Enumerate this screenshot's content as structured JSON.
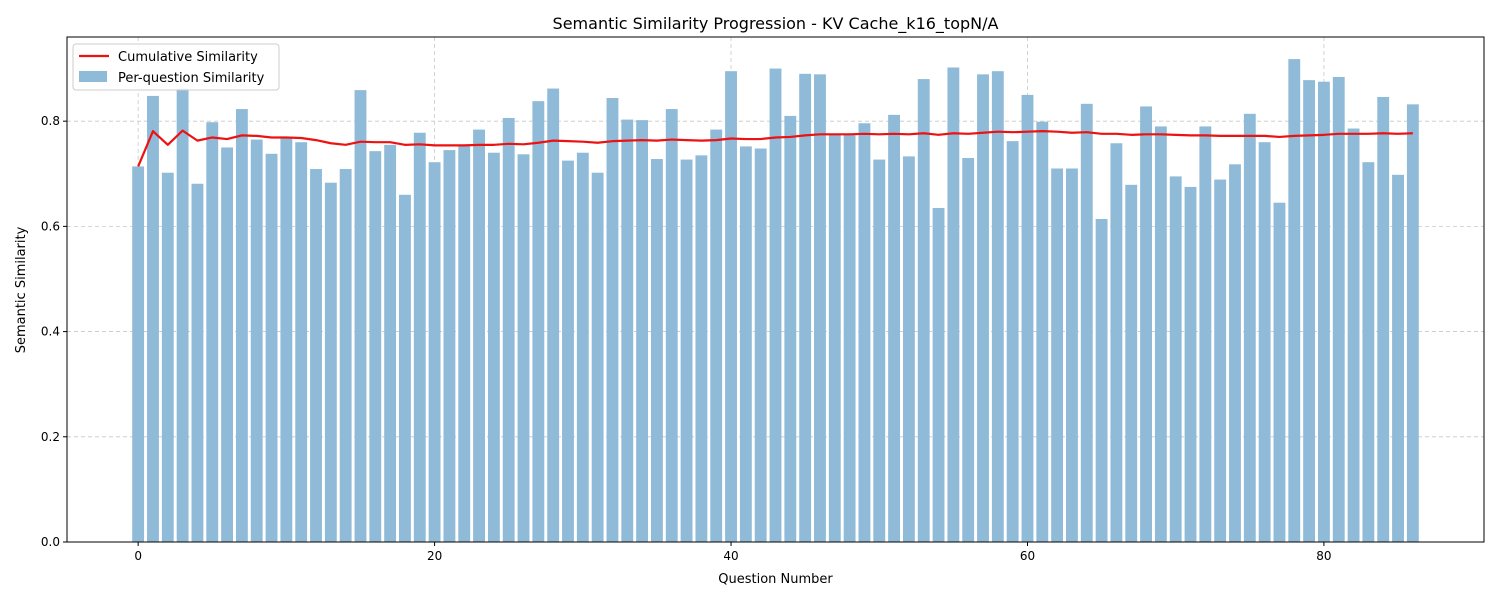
{
  "chart_data": {
    "type": "bar",
    "title": "Semantic Similarity Progression - KV Cache_k16_topN/A",
    "xlabel": "Question Number",
    "ylabel": "Semantic Similarity",
    "xlim": [
      -4.8,
      90.8
    ],
    "ylim": [
      0,
      0.96
    ],
    "x_ticks": [
      0,
      20,
      40,
      60,
      80
    ],
    "y_ticks": [
      0.0,
      0.2,
      0.4,
      0.6,
      0.8
    ],
    "grid": true,
    "legend_position": "top-left",
    "x": [
      0,
      1,
      2,
      3,
      4,
      5,
      6,
      7,
      8,
      9,
      10,
      11,
      12,
      13,
      14,
      15,
      16,
      17,
      18,
      19,
      20,
      21,
      22,
      23,
      24,
      25,
      26,
      27,
      28,
      29,
      30,
      31,
      32,
      33,
      34,
      35,
      36,
      37,
      38,
      39,
      40,
      41,
      42,
      43,
      44,
      45,
      46,
      47,
      48,
      49,
      50,
      51,
      52,
      53,
      54,
      55,
      56,
      57,
      58,
      59,
      60,
      61,
      62,
      63,
      64,
      65,
      66,
      67,
      68,
      69,
      70,
      71,
      72,
      73,
      74,
      75,
      76,
      77,
      78,
      79,
      80,
      81,
      82,
      83,
      84,
      85,
      86
    ],
    "series": [
      {
        "name": "Per-question Similarity",
        "type": "bar",
        "color": "#8fbad8",
        "values": [
          0.714,
          0.848,
          0.702,
          0.862,
          0.681,
          0.798,
          0.75,
          0.823,
          0.765,
          0.738,
          0.768,
          0.76,
          0.709,
          0.683,
          0.709,
          0.859,
          0.743,
          0.755,
          0.66,
          0.778,
          0.722,
          0.745,
          0.755,
          0.784,
          0.74,
          0.806,
          0.737,
          0.838,
          0.862,
          0.725,
          0.74,
          0.702,
          0.844,
          0.803,
          0.802,
          0.728,
          0.823,
          0.727,
          0.735,
          0.784,
          0.895,
          0.752,
          0.748,
          0.9,
          0.81,
          0.89,
          0.889,
          0.776,
          0.776,
          0.796,
          0.727,
          0.812,
          0.733,
          0.88,
          0.635,
          0.902,
          0.73,
          0.889,
          0.895,
          0.762,
          0.85,
          0.799,
          0.71,
          0.71,
          0.833,
          0.614,
          0.758,
          0.679,
          0.828,
          0.79,
          0.695,
          0.675,
          0.79,
          0.689,
          0.718,
          0.814,
          0.76,
          0.645,
          0.918,
          0.878,
          0.875,
          0.884,
          0.786,
          0.722,
          0.846,
          0.698,
          0.832
        ]
      },
      {
        "name": "Cumulative Similarity",
        "type": "line",
        "color": "#ee1111",
        "values": [
          0.714,
          0.781,
          0.755,
          0.782,
          0.763,
          0.769,
          0.766,
          0.773,
          0.772,
          0.769,
          0.769,
          0.768,
          0.764,
          0.758,
          0.755,
          0.761,
          0.76,
          0.76,
          0.755,
          0.756,
          0.754,
          0.754,
          0.754,
          0.755,
          0.755,
          0.757,
          0.756,
          0.759,
          0.763,
          0.762,
          0.761,
          0.759,
          0.762,
          0.763,
          0.764,
          0.763,
          0.765,
          0.764,
          0.763,
          0.764,
          0.767,
          0.766,
          0.766,
          0.769,
          0.77,
          0.773,
          0.775,
          0.775,
          0.775,
          0.776,
          0.775,
          0.776,
          0.775,
          0.777,
          0.774,
          0.777,
          0.776,
          0.778,
          0.78,
          0.779,
          0.78,
          0.781,
          0.78,
          0.778,
          0.779,
          0.776,
          0.776,
          0.774,
          0.775,
          0.775,
          0.774,
          0.773,
          0.773,
          0.772,
          0.772,
          0.772,
          0.772,
          0.77,
          0.772,
          0.773,
          0.774,
          0.776,
          0.776,
          0.776,
          0.777,
          0.776,
          0.777
        ]
      }
    ]
  }
}
